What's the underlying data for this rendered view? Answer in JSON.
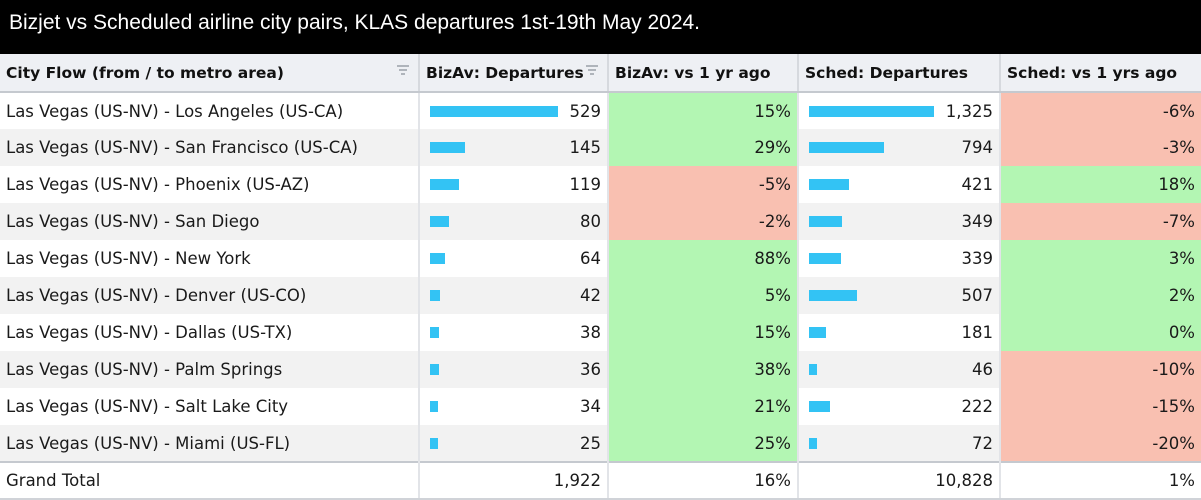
{
  "title": "Bizjet vs Scheduled airline city pairs, KLAS departures 1st-19th May 2024.",
  "columns": {
    "city_flow": "City Flow (from / to metro area)",
    "bizav_departures": "BizAv: Departures",
    "bizav_vs_yr": "BizAv: vs 1 yr ago",
    "sched_departures": "Sched: Departures",
    "sched_vs_yr": "Sched: vs 1 yrs ago"
  },
  "colors": {
    "positive": "#b3f6b3",
    "negative": "#f9c0b1",
    "bar": "#33c3f4"
  },
  "rows": [
    {
      "city": "Las Vegas (US-NV) - Los Angeles (US-CA)",
      "bizav": "529",
      "bizav_n": 529,
      "bizav_chg": "15%",
      "bizav_sign": "pos",
      "sched": "1,325",
      "sched_n": 1325,
      "sched_chg": "-6%",
      "sched_sign": "neg"
    },
    {
      "city": "Las Vegas (US-NV) - San Francisco (US-CA)",
      "bizav": "145",
      "bizav_n": 145,
      "bizav_chg": "29%",
      "bizav_sign": "pos",
      "sched": "794",
      "sched_n": 794,
      "sched_chg": "-3%",
      "sched_sign": "neg"
    },
    {
      "city": "Las Vegas (US-NV) - Phoenix (US-AZ)",
      "bizav": "119",
      "bizav_n": 119,
      "bizav_chg": "-5%",
      "bizav_sign": "neg",
      "sched": "421",
      "sched_n": 421,
      "sched_chg": "18%",
      "sched_sign": "pos"
    },
    {
      "city": "Las Vegas (US-NV) - San Diego",
      "bizav": "80",
      "bizav_n": 80,
      "bizav_chg": "-2%",
      "bizav_sign": "neg",
      "sched": "349",
      "sched_n": 349,
      "sched_chg": "-7%",
      "sched_sign": "neg"
    },
    {
      "city": "Las Vegas (US-NV) - New York",
      "bizav": "64",
      "bizav_n": 64,
      "bizav_chg": "88%",
      "bizav_sign": "pos",
      "sched": "339",
      "sched_n": 339,
      "sched_chg": "3%",
      "sched_sign": "pos"
    },
    {
      "city": "Las Vegas (US-NV) - Denver (US-CO)",
      "bizav": "42",
      "bizav_n": 42,
      "bizav_chg": "5%",
      "bizav_sign": "pos",
      "sched": "507",
      "sched_n": 507,
      "sched_chg": "2%",
      "sched_sign": "pos"
    },
    {
      "city": "Las Vegas (US-NV) - Dallas (US-TX)",
      "bizav": "38",
      "bizav_n": 38,
      "bizav_chg": "15%",
      "bizav_sign": "pos",
      "sched": "181",
      "sched_n": 181,
      "sched_chg": "0%",
      "sched_sign": "pos"
    },
    {
      "city": "Las Vegas (US-NV) - Palm Springs",
      "bizav": "36",
      "bizav_n": 36,
      "bizav_chg": "38%",
      "bizav_sign": "pos",
      "sched": "46",
      "sched_n": 46,
      "sched_chg": "-10%",
      "sched_sign": "neg"
    },
    {
      "city": "Las Vegas (US-NV) - Salt Lake City",
      "bizav": "34",
      "bizav_n": 34,
      "bizav_chg": "21%",
      "bizav_sign": "pos",
      "sched": "222",
      "sched_n": 222,
      "sched_chg": "-15%",
      "sched_sign": "neg"
    },
    {
      "city": "Las Vegas (US-NV) - Miami (US-FL)",
      "bizav": "25",
      "bizav_n": 25,
      "bizav_chg": "25%",
      "bizav_sign": "pos",
      "sched": "72",
      "sched_n": 72,
      "sched_chg": "-20%",
      "sched_sign": "neg"
    }
  ],
  "total": {
    "label": "Grand Total",
    "bizav": "1,922",
    "bizav_chg": "16%",
    "sched": "10,828",
    "sched_chg": "1%"
  },
  "icons": {
    "city_flow_sort": "sort-descending-icon",
    "bizav_sort": "sort-descending-icon"
  }
}
